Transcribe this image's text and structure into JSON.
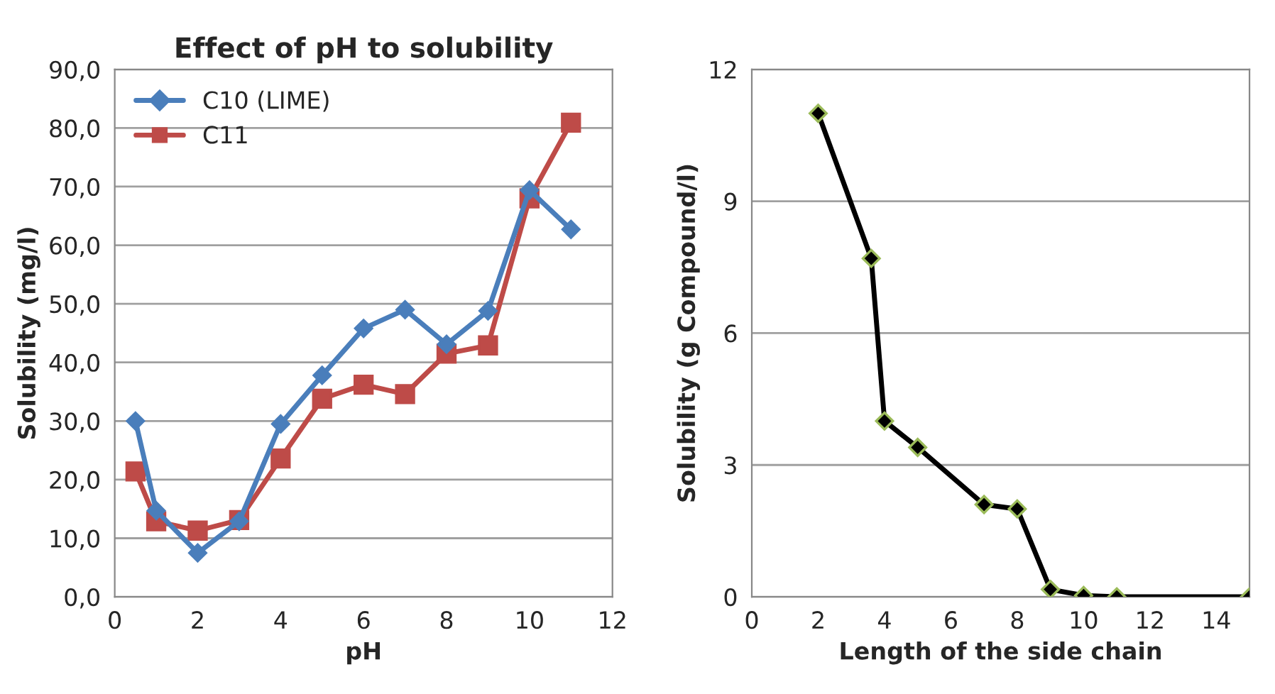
{
  "chart_data": [
    {
      "type": "line",
      "title": "Effect of pH to solubility",
      "xlabel": "pH",
      "ylabel": "Solubility (mg/l)",
      "xlim": [
        0,
        12
      ],
      "xticks": [
        0,
        2,
        4,
        6,
        8,
        10,
        12
      ],
      "ylim": [
        0,
        90
      ],
      "yticks": [
        {
          "value": 0,
          "label": "0,0"
        },
        {
          "value": 10,
          "label": "10,0"
        },
        {
          "value": 20,
          "label": "20,0"
        },
        {
          "value": 30,
          "label": "30,0"
        },
        {
          "value": 40,
          "label": "40,0"
        },
        {
          "value": 50,
          "label": "50,0"
        },
        {
          "value": 60,
          "label": "60,0"
        },
        {
          "value": 70,
          "label": "70,0"
        },
        {
          "value": 80,
          "label": "80,0"
        },
        {
          "value": 90,
          "label": "90,0"
        }
      ],
      "grid": "y",
      "legend": "top left",
      "line_style": "solid",
      "series": [
        {
          "name": "C10 (LIME)",
          "color": "#4a7ebb",
          "marker": "diamond",
          "x": [
            0.5,
            1,
            2,
            3,
            4,
            5,
            6,
            7,
            8,
            9,
            10,
            11
          ],
          "values": [
            30,
            14.7,
            7.5,
            12.9,
            29.5,
            37.8,
            45.8,
            49,
            43.1,
            48.8,
            69.4,
            62.7
          ]
        },
        {
          "name": "C11",
          "color": "#be4b48",
          "marker": "square",
          "x": [
            0.5,
            1,
            2,
            3,
            4,
            5,
            6,
            7,
            8,
            9,
            10,
            11
          ],
          "values": [
            21.4,
            12.9,
            11.3,
            13.1,
            23.6,
            33.8,
            36.2,
            34.6,
            41.5,
            42.9,
            68,
            80.9
          ]
        }
      ]
    },
    {
      "type": "line",
      "xlabel": "Length of the side chain",
      "ylabel": "Solubility (g Compound/l)",
      "xlim": [
        0,
        15
      ],
      "xticks": [
        0,
        2,
        4,
        6,
        8,
        10,
        12,
        14
      ],
      "ylim": [
        0,
        12
      ],
      "yticks": [
        0,
        3,
        6,
        9,
        12
      ],
      "grid": "y",
      "line_style": "solid",
      "series": [
        {
          "color": "#000000",
          "marker": "diamond",
          "x": [
            2,
            3.6,
            4,
            5,
            7,
            8,
            9,
            10,
            11,
            15
          ],
          "values": [
            11,
            7.7,
            4,
            3.4,
            2.1,
            2,
            0.17,
            0.03,
            0,
            0
          ]
        }
      ]
    }
  ]
}
